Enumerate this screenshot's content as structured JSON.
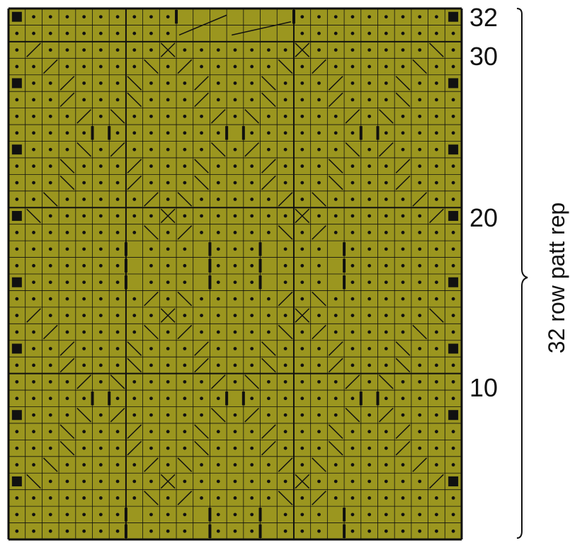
{
  "row_labels": [
    "32",
    "30",
    "20",
    "10"
  ],
  "repeat_label": "32 row patt rep",
  "colors": {
    "cell_fill": "#9b961f",
    "grid_line": "#111111",
    "symbol": "#111111",
    "background": "#ffffff"
  },
  "chart": {
    "stitches": 27,
    "rows": 32,
    "symbols": [
      "purl-dot",
      "filled-square",
      "vertical-bar",
      "diagonal-left",
      "diagonal-right",
      "long-cable-crossing"
    ]
  }
}
